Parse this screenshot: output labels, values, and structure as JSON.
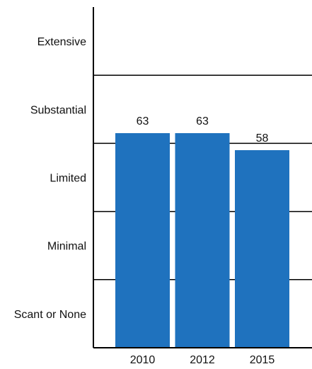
{
  "chart_data": {
    "type": "bar",
    "categories": [
      "2010",
      "2012",
      "2015"
    ],
    "series": [
      {
        "values": [
          63,
          63,
          58
        ]
      }
    ],
    "data_labels": [
      "63",
      "63",
      "58"
    ],
    "ylim": [
      0,
      100
    ],
    "y_bands": [
      "Scant or None",
      "Minimal",
      "Limited",
      "Substantial",
      "Extensive"
    ],
    "grid": true,
    "bar_color": "#1F72BE",
    "axis_color": "#000000"
  }
}
